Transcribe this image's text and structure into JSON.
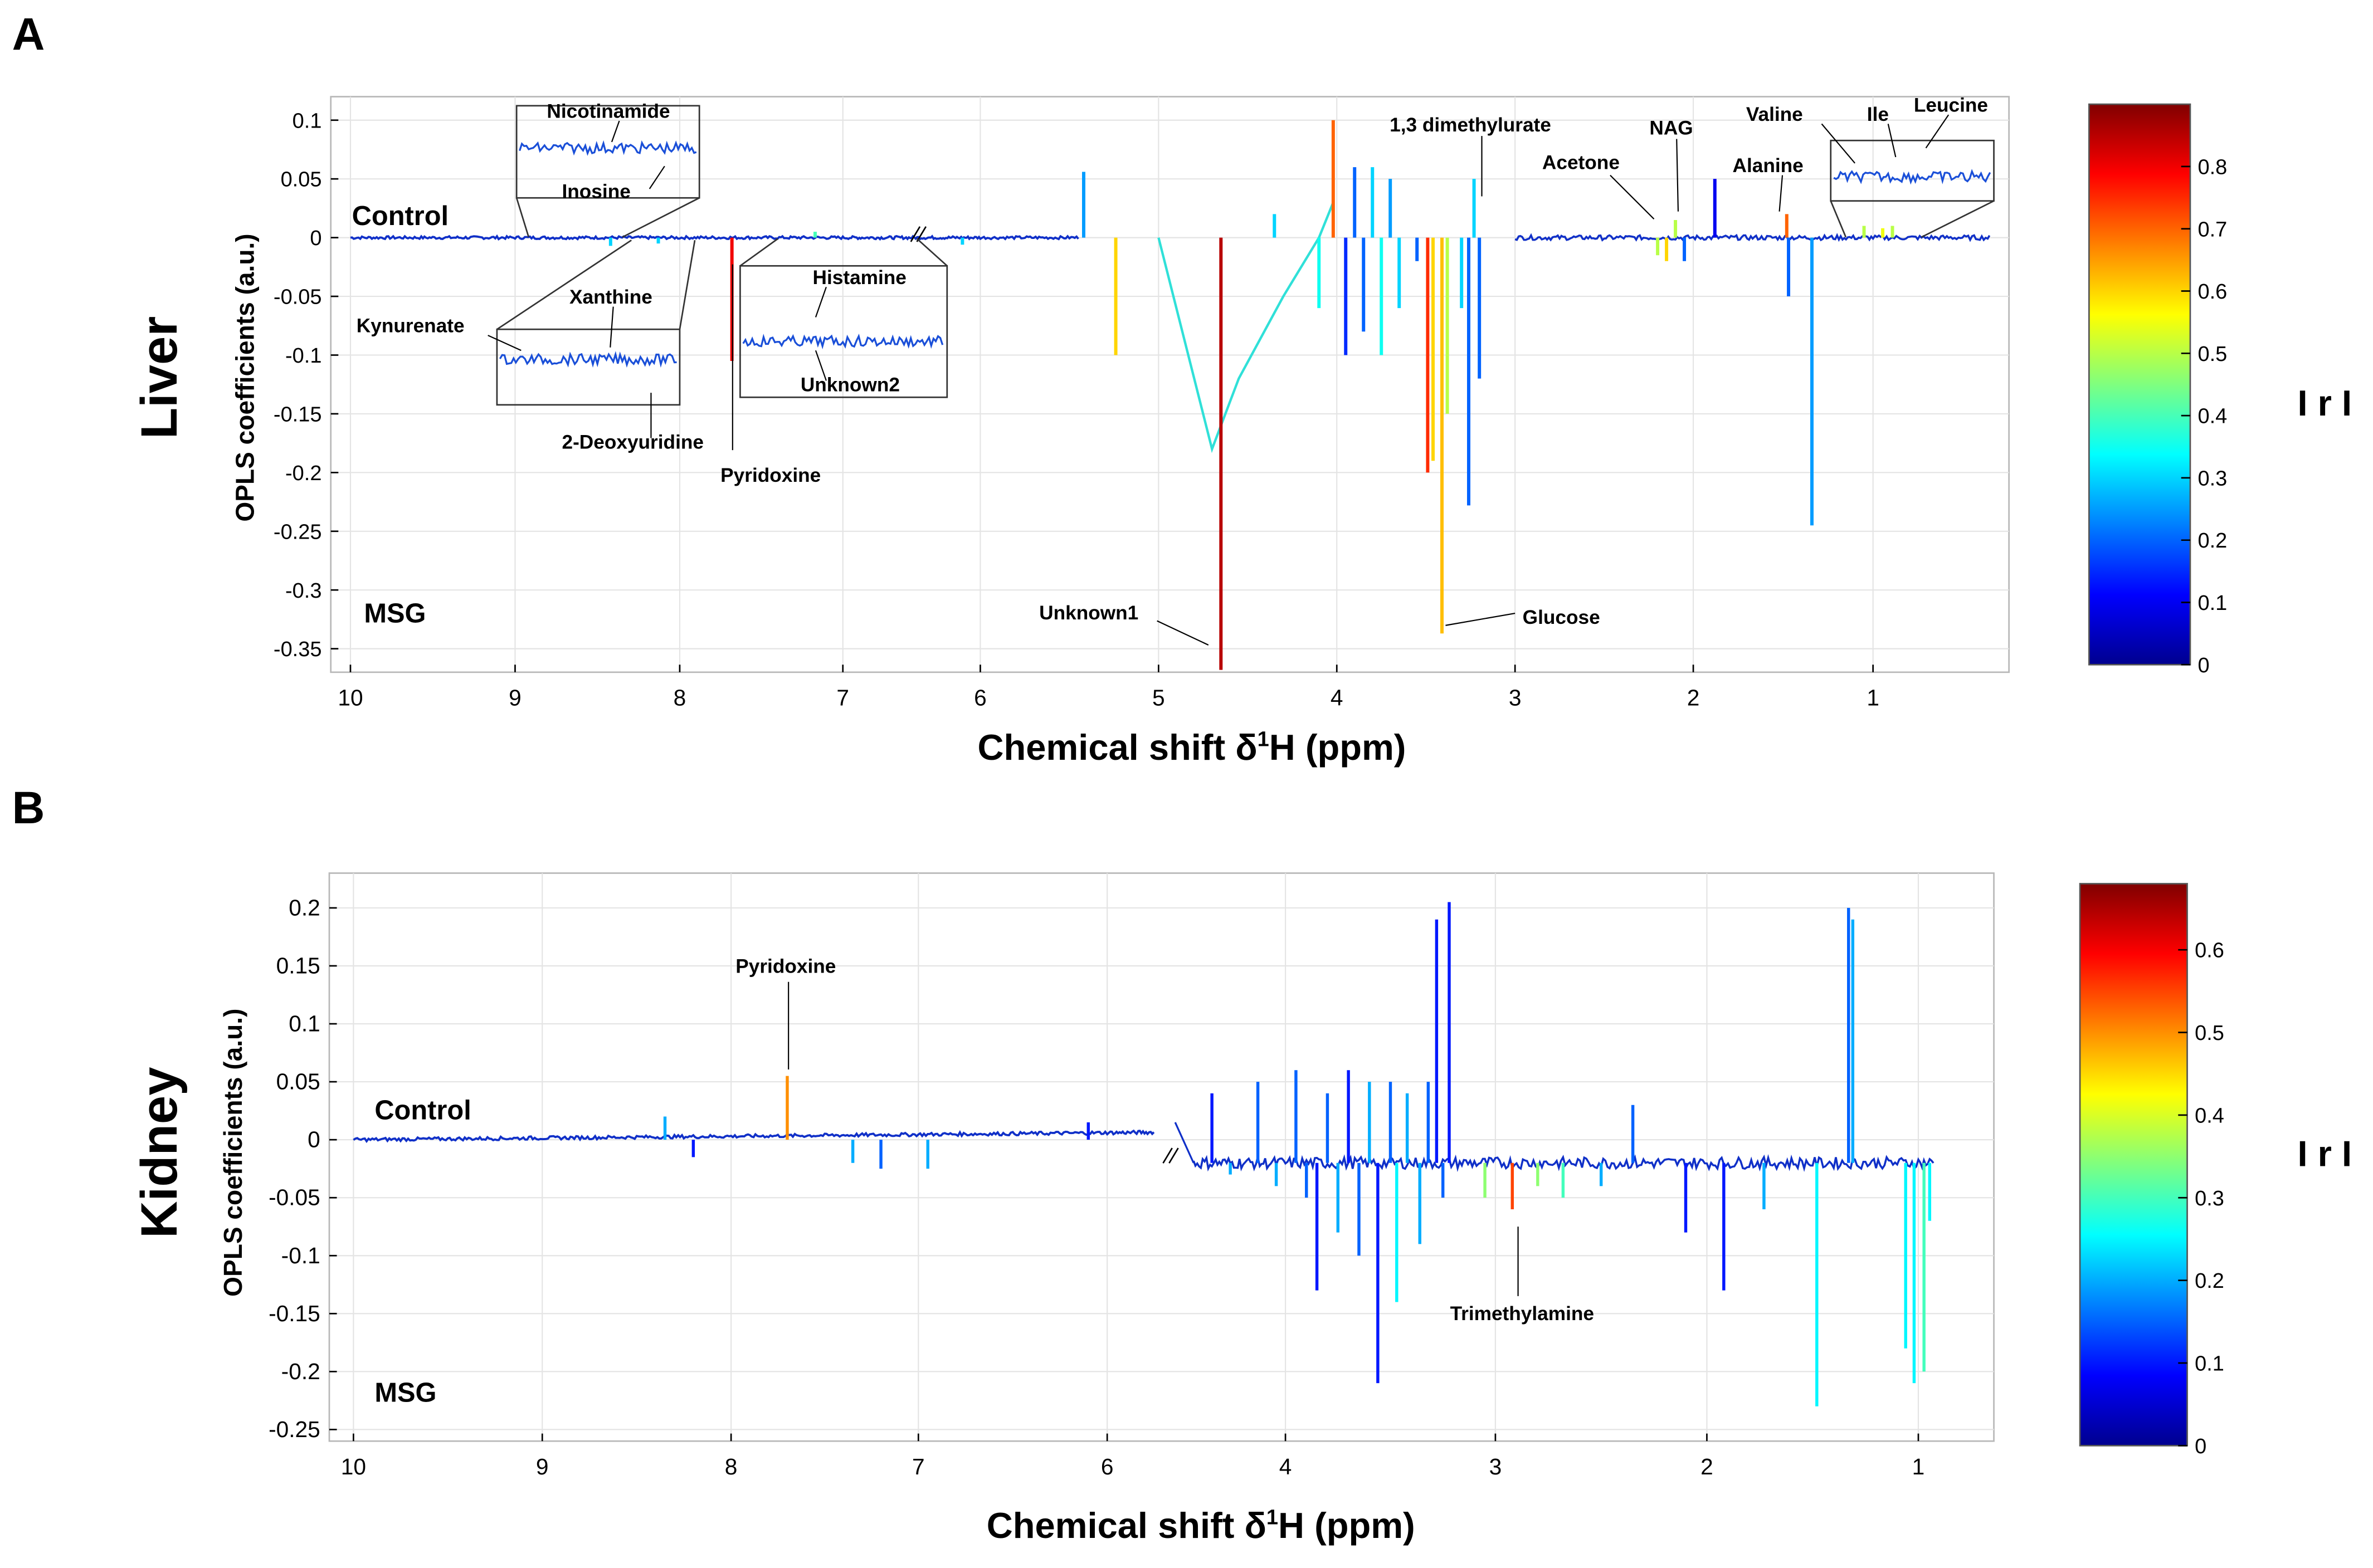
{
  "chart_data": [
    {
      "panel_letter": "A",
      "type": "line",
      "tissue": "Liver",
      "ylabel": "OPLS coefficients (a.u.)",
      "xlabel": "Chemical shift  δ¹H  (ppm)",
      "xlabel_main": "Chemical shift  δ",
      "xlabel_sup": "1",
      "xlabel_tail": "H  (ppm)",
      "xlim": [
        10.0,
        0.3
      ],
      "ylim": [
        -0.37,
        0.12
      ],
      "xticks": [
        10,
        9,
        8,
        7,
        6,
        5,
        4,
        3,
        2,
        1
      ],
      "xtick_labels": [
        "10",
        "9",
        "8",
        "7",
        "6",
        "5",
        "4",
        "3",
        "2",
        "1"
      ],
      "yticks": [
        0.1,
        0.05,
        0,
        -0.05,
        -0.1,
        -0.15,
        -0.2,
        -0.25,
        -0.3,
        -0.35
      ],
      "ytick_labels": [
        "0.1",
        "0.05",
        "0",
        "-0.05",
        "-0.1",
        "-0.15",
        "-0.2",
        "-0.25",
        "-0.3",
        "-0.35"
      ],
      "group_labels": {
        "top": "Control",
        "bottom": "MSG"
      },
      "colorbar": {
        "label": "I r I",
        "min": 0,
        "max": 0.9,
        "ticks": [
          0.8,
          0.7,
          0.6,
          0.5,
          0.4,
          0.3,
          0.2,
          0.1,
          0
        ],
        "tick_labels": [
          "0.8",
          "0.7",
          "0.6",
          "0.5",
          "0.4",
          "0.3",
          "0.2",
          "0.1",
          "0"
        ]
      },
      "peaks": [
        {
          "x": 7.68,
          "y": -0.105,
          "r": 0.8
        },
        {
          "x": 8.42,
          "y": -0.007,
          "r": 0.3
        },
        {
          "x": 8.13,
          "y": -0.005,
          "r": 0.3
        },
        {
          "x": 7.17,
          "y": 0.005,
          "r": 0.4
        },
        {
          "x": 6.13,
          "y": -0.006,
          "r": 0.3
        },
        {
          "x": 5.42,
          "y": 0.056,
          "r": 0.25
        },
        {
          "x": 5.24,
          "y": -0.1,
          "r": 0.6
        },
        {
          "x": 4.65,
          "y": -0.368,
          "r": 0.85
        },
        {
          "x": 4.35,
          "y": 0.02,
          "r": 0.3
        },
        {
          "x": 4.1,
          "y": -0.06,
          "r": 0.35
        },
        {
          "x": 4.02,
          "y": 0.1,
          "r": 0.7
        },
        {
          "x": 3.95,
          "y": -0.1,
          "r": 0.15
        },
        {
          "x": 3.9,
          "y": 0.06,
          "r": 0.2
        },
        {
          "x": 3.85,
          "y": -0.08,
          "r": 0.2
        },
        {
          "x": 3.8,
          "y": 0.06,
          "r": 0.3
        },
        {
          "x": 3.75,
          "y": -0.1,
          "r": 0.35
        },
        {
          "x": 3.7,
          "y": 0.05,
          "r": 0.25
        },
        {
          "x": 3.65,
          "y": -0.06,
          "r": 0.3
        },
        {
          "x": 3.55,
          "y": -0.02,
          "r": 0.2
        },
        {
          "x": 3.49,
          "y": -0.2,
          "r": 0.75
        },
        {
          "x": 3.46,
          "y": -0.19,
          "r": 0.6
        },
        {
          "x": 3.41,
          "y": -0.337,
          "r": 0.62
        },
        {
          "x": 3.38,
          "y": -0.15,
          "r": 0.5
        },
        {
          "x": 3.3,
          "y": -0.06,
          "r": 0.3
        },
        {
          "x": 3.26,
          "y": -0.228,
          "r": 0.2
        },
        {
          "x": 3.23,
          "y": 0.05,
          "r": 0.3
        },
        {
          "x": 3.2,
          "y": -0.12,
          "r": 0.2
        },
        {
          "x": 2.2,
          "y": -0.015,
          "r": 0.5
        },
        {
          "x": 2.15,
          "y": -0.02,
          "r": 0.6
        },
        {
          "x": 2.1,
          "y": 0.015,
          "r": 0.5
        },
        {
          "x": 2.05,
          "y": -0.02,
          "r": 0.2
        },
        {
          "x": 1.88,
          "y": 0.05,
          "r": 0.1
        },
        {
          "x": 1.48,
          "y": 0.02,
          "r": 0.7
        },
        {
          "x": 1.47,
          "y": -0.05,
          "r": 0.2
        },
        {
          "x": 1.34,
          "y": -0.245,
          "r": 0.25
        },
        {
          "x": 1.05,
          "y": 0.01,
          "r": 0.5
        },
        {
          "x": 0.95,
          "y": 0.008,
          "r": 0.55
        },
        {
          "x": 0.9,
          "y": 0.01,
          "r": 0.5
        }
      ],
      "annotations": [
        "Nicotinamide",
        "Inosine",
        "Kynurenate",
        "Xanthine",
        "2-Deoxyuridine",
        "Pyridoxine",
        "Histamine",
        "Unknown2",
        "Unknown1",
        "Glucose",
        "1,3 dimethylurate",
        "Acetone",
        "NAG",
        "Alanine",
        "Valine",
        "Ile",
        "Leucine"
      ]
    },
    {
      "panel_letter": "B",
      "type": "line",
      "tissue": "Kidney",
      "ylabel": "OPLS coefficients (a.u.)",
      "xlabel": "Chemical shift  δ¹H  (ppm)",
      "xlabel_main": "Chemical shift  δ",
      "xlabel_sup": "1",
      "xlabel_tail": "H  (ppm)",
      "xlim": [
        10.0,
        0.6
      ],
      "ylim": [
        -0.26,
        0.23
      ],
      "xticks": [
        10,
        9,
        8,
        7,
        6,
        4,
        3,
        2,
        1
      ],
      "xtick_labels": [
        "10",
        "9",
        "8",
        "7",
        "6",
        "4",
        "3",
        "2",
        "1"
      ],
      "yticks": [
        0.2,
        0.15,
        0.1,
        0.05,
        0,
        -0.05,
        -0.1,
        -0.15,
        -0.2,
        -0.25
      ],
      "ytick_labels": [
        "0.2",
        "0.15",
        "0.1",
        "0.05",
        "0",
        "-0.05",
        "-0.1",
        "-0.15",
        "-0.2",
        "-0.25"
      ],
      "group_labels": {
        "top": "Control",
        "bottom": "MSG"
      },
      "colorbar": {
        "label": "I r I",
        "min": 0,
        "max": 0.68,
        "ticks": [
          0.6,
          0.5,
          0.4,
          0.3,
          0.2,
          0.1,
          0
        ],
        "tick_labels": [
          "0.6",
          "0.5",
          "0.4",
          "0.3",
          "0.2",
          "0.1",
          "0"
        ]
      },
      "peaks": [
        {
          "x": 8.35,
          "y": 0.02,
          "r": 0.2
        },
        {
          "x": 8.2,
          "y": -0.015,
          "r": 0.1
        },
        {
          "x": 7.7,
          "y": 0.055,
          "r": 0.5
        },
        {
          "x": 7.35,
          "y": -0.02,
          "r": 0.2
        },
        {
          "x": 7.2,
          "y": -0.025,
          "r": 0.15
        },
        {
          "x": 6.95,
          "y": -0.025,
          "r": 0.2
        },
        {
          "x": 6.1,
          "y": 0.015,
          "r": 0.1
        },
        {
          "x": 4.4,
          "y": 0.04,
          "r": 0.1
        },
        {
          "x": 4.3,
          "y": -0.03,
          "r": 0.2
        },
        {
          "x": 4.15,
          "y": 0.05,
          "r": 0.15
        },
        {
          "x": 4.05,
          "y": -0.04,
          "r": 0.2
        },
        {
          "x": 3.95,
          "y": 0.06,
          "r": 0.15
        },
        {
          "x": 3.9,
          "y": -0.05,
          "r": 0.15
        },
        {
          "x": 3.85,
          "y": -0.13,
          "r": 0.1
        },
        {
          "x": 3.8,
          "y": 0.04,
          "r": 0.15
        },
        {
          "x": 3.75,
          "y": -0.08,
          "r": 0.2
        },
        {
          "x": 3.7,
          "y": 0.06,
          "r": 0.1
        },
        {
          "x": 3.65,
          "y": -0.1,
          "r": 0.15
        },
        {
          "x": 3.6,
          "y": 0.05,
          "r": 0.2
        },
        {
          "x": 3.56,
          "y": -0.21,
          "r": 0.1
        },
        {
          "x": 3.5,
          "y": 0.05,
          "r": 0.15
        },
        {
          "x": 3.47,
          "y": -0.14,
          "r": 0.25
        },
        {
          "x": 3.42,
          "y": 0.04,
          "r": 0.2
        },
        {
          "x": 3.36,
          "y": -0.09,
          "r": 0.2
        },
        {
          "x": 3.32,
          "y": 0.05,
          "r": 0.15
        },
        {
          "x": 3.28,
          "y": 0.19,
          "r": 0.1
        },
        {
          "x": 3.25,
          "y": -0.05,
          "r": 0.15
        },
        {
          "x": 3.22,
          "y": 0.205,
          "r": 0.1
        },
        {
          "x": 3.05,
          "y": -0.05,
          "r": 0.35
        },
        {
          "x": 2.92,
          "y": -0.06,
          "r": 0.55
        },
        {
          "x": 2.8,
          "y": -0.04,
          "r": 0.35
        },
        {
          "x": 2.68,
          "y": -0.05,
          "r": 0.3
        },
        {
          "x": 2.5,
          "y": -0.04,
          "r": 0.2
        },
        {
          "x": 2.35,
          "y": 0.03,
          "r": 0.15
        },
        {
          "x": 2.1,
          "y": -0.08,
          "r": 0.1
        },
        {
          "x": 1.92,
          "y": -0.13,
          "r": 0.1
        },
        {
          "x": 1.73,
          "y": -0.06,
          "r": 0.2
        },
        {
          "x": 1.48,
          "y": -0.23,
          "r": 0.25
        },
        {
          "x": 1.33,
          "y": 0.2,
          "r": 0.15
        },
        {
          "x": 1.31,
          "y": 0.19,
          "r": 0.2
        },
        {
          "x": 1.06,
          "y": -0.18,
          "r": 0.25
        },
        {
          "x": 1.02,
          "y": -0.21,
          "r": 0.25
        },
        {
          "x": 0.97,
          "y": -0.2,
          "r": 0.3
        },
        {
          "x": 0.94,
          "y": -0.07,
          "r": 0.25
        }
      ],
      "annotations": [
        "Pyridoxine",
        "Trimethylamine"
      ]
    }
  ]
}
